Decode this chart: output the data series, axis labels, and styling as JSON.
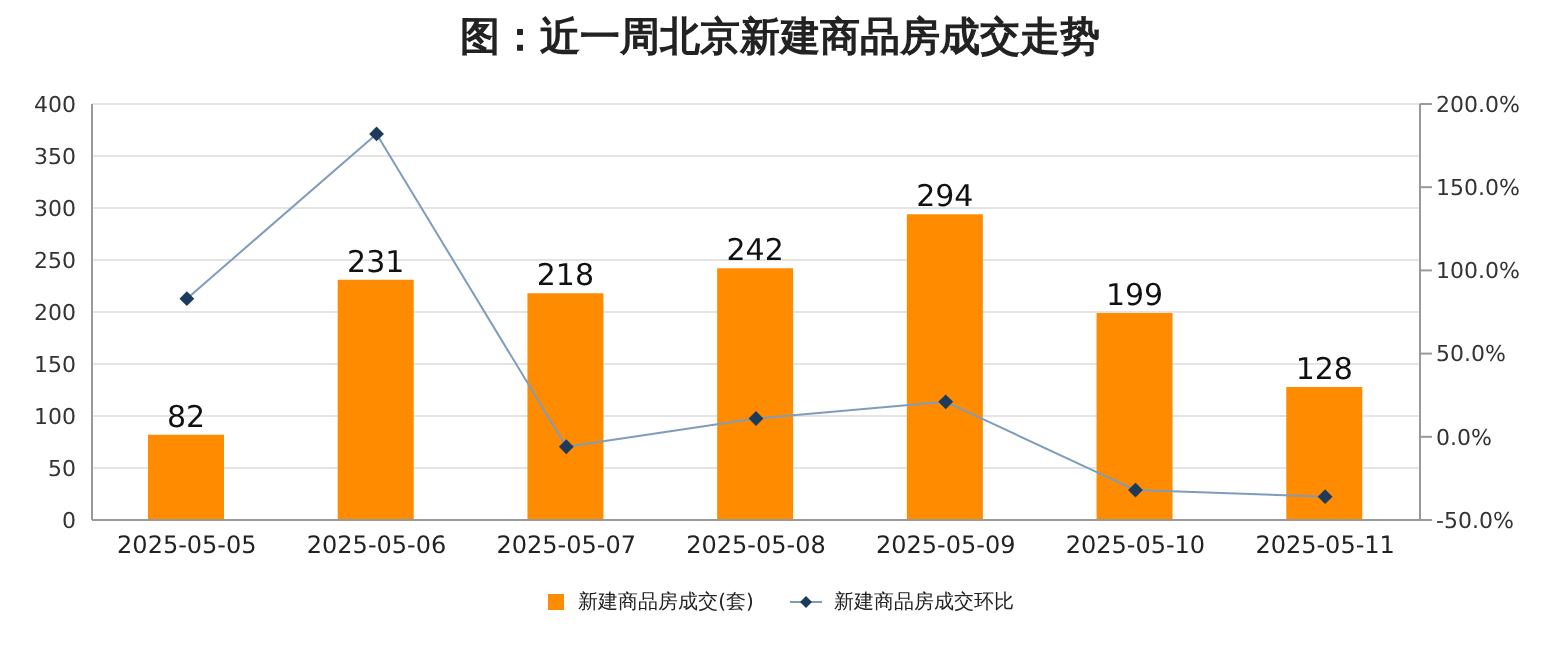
{
  "chart_data": {
    "type": "bar",
    "title": "图：近一周北京新建商品房成交走势",
    "categories": [
      "2025-05-05",
      "2025-05-06",
      "2025-05-07",
      "2025-05-08",
      "2025-05-09",
      "2025-05-10",
      "2025-05-11"
    ],
    "series": [
      {
        "name": "新建商品房成交(套)",
        "color": "#ff8c00",
        "values": [
          82,
          231,
          218,
          242,
          294,
          199,
          128
        ],
        "value_labels": [
          "82",
          "231",
          "218",
          "242",
          "294",
          "199",
          "128"
        ]
      },
      {
        "name": "新建商品房成交环比",
        "type": "line",
        "axis": "y2",
        "color": "#7f9cbd",
        "values": [
          83,
          182,
          -6,
          11,
          21,
          -32,
          -36
        ],
        "marker": "diamond"
      }
    ],
    "ylim": [
      0,
      400
    ],
    "yticks": [
      0,
      50,
      100,
      150,
      200,
      250,
      300,
      350,
      400
    ],
    "y2lim": [
      -50,
      200
    ],
    "y2ticks": [
      {
        "value": -50,
        "label": "-50.0%"
      },
      {
        "value": 0,
        "label": "0.0%"
      },
      {
        "value": 50,
        "label": "50.0%"
      },
      {
        "value": 100,
        "label": "100.0%"
      },
      {
        "value": 150,
        "label": "150.0%"
      },
      {
        "value": 200,
        "label": "200.0%"
      }
    ],
    "grid": "y",
    "legend": "bottom"
  }
}
